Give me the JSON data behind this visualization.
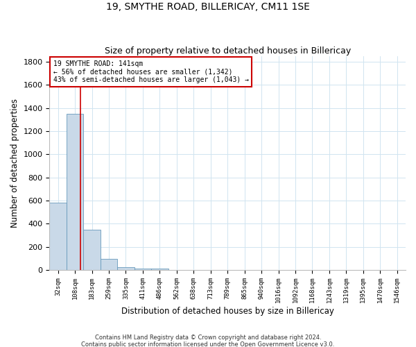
{
  "title": "19, SMYTHE ROAD, BILLERICAY, CM11 1SE",
  "subtitle": "Size of property relative to detached houses in Billericay",
  "xlabel": "Distribution of detached houses by size in Billericay",
  "ylabel": "Number of detached properties",
  "footer_line1": "Contains HM Land Registry data © Crown copyright and database right 2024.",
  "footer_line2": "Contains public sector information licensed under the Open Government Licence v3.0.",
  "bar_color": "#c9d9e8",
  "bar_edge_color": "#6699bb",
  "grid_color": "#d0e4f0",
  "annotation_box_color": "#cc0000",
  "vline_color": "#cc0000",
  "categories": [
    "32sqm",
    "108sqm",
    "183sqm",
    "259sqm",
    "335sqm",
    "411sqm",
    "486sqm",
    "562sqm",
    "638sqm",
    "713sqm",
    "789sqm",
    "865sqm",
    "940sqm",
    "1016sqm",
    "1092sqm",
    "1168sqm",
    "1243sqm",
    "1319sqm",
    "1395sqm",
    "1470sqm",
    "1546sqm"
  ],
  "values": [
    580,
    1350,
    350,
    95,
    27,
    15,
    10,
    0,
    0,
    0,
    0,
    0,
    0,
    0,
    0,
    0,
    0,
    0,
    0,
    0,
    0
  ],
  "property_label": "19 SMYTHE ROAD: 141sqm",
  "annotation_line1": "← 56% of detached houses are smaller (1,342)",
  "annotation_line2": "43% of semi-detached houses are larger (1,043) →",
  "vline_x": 1.33,
  "ylim": [
    0,
    1850
  ],
  "yticks": [
    0,
    200,
    400,
    600,
    800,
    1000,
    1200,
    1400,
    1600,
    1800
  ]
}
